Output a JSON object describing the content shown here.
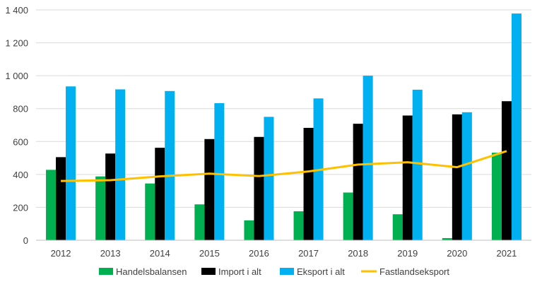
{
  "chart_data": {
    "type": "bar",
    "categories": [
      "2012",
      "2013",
      "2014",
      "2015",
      "2016",
      "2017",
      "2018",
      "2019",
      "2020",
      "2021"
    ],
    "series": [
      {
        "name": "Handelsbalansen",
        "type": "bar",
        "color": "#00b050",
        "values": [
          428,
          388,
          345,
          218,
          121,
          176,
          290,
          158,
          13,
          532
        ]
      },
      {
        "name": "Import i alt",
        "type": "bar",
        "color": "#000000",
        "values": [
          505,
          527,
          562,
          615,
          628,
          683,
          708,
          758,
          765,
          845
        ]
      },
      {
        "name": "Eksport i alt",
        "type": "bar",
        "color": "#00b0f0",
        "values": [
          935,
          917,
          907,
          833,
          750,
          862,
          1000,
          915,
          778,
          1378
        ]
      },
      {
        "name": "Fastlandseksport",
        "type": "line",
        "color": "#ffc000",
        "values": [
          360,
          365,
          388,
          405,
          390,
          418,
          460,
          474,
          444,
          542
        ]
      }
    ],
    "yticks": [
      "0",
      "200",
      "400",
      "600",
      "800",
      "1 000",
      "1 200",
      "1 400"
    ],
    "ylim": [
      0,
      1400
    ],
    "grid": true,
    "legend_position": "bottom",
    "title": "",
    "xlabel": "",
    "ylabel": ""
  }
}
